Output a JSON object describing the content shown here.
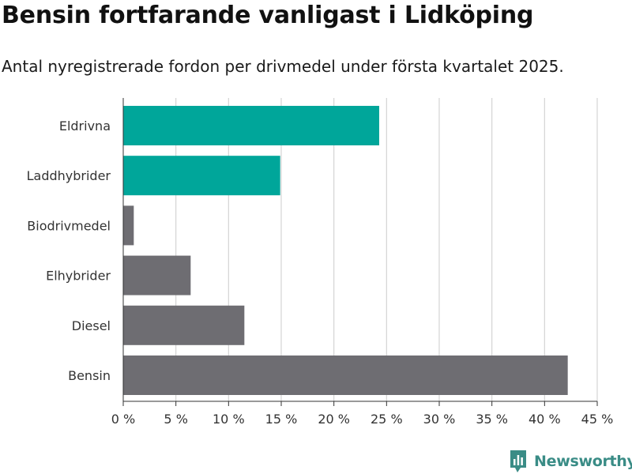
{
  "title": "Bensin fortfarande vanligast i Lidköping",
  "subtitle": "Antal nyregistrerade fordon per drivmedel under första kvartalet 2025.",
  "logo_text": "Newsworthy",
  "colors": {
    "highlight": "#00a69a",
    "base": "#6e6d72",
    "grid": "#d4d4d4",
    "axis": "#333333",
    "logo": "#3a8c86"
  },
  "chart_data": {
    "type": "bar",
    "orientation": "horizontal",
    "categories": [
      "Eldrivna",
      "Laddhybrider",
      "Biodrivmedel",
      "Elhybrider",
      "Diesel",
      "Bensin"
    ],
    "values": [
      24.3,
      14.9,
      1.0,
      6.4,
      11.5,
      42.2
    ],
    "highlighted": [
      true,
      true,
      false,
      false,
      false,
      false
    ],
    "xlim": [
      0,
      45
    ],
    "xticks": [
      0,
      5,
      10,
      15,
      20,
      25,
      30,
      35,
      40,
      45
    ],
    "tick_suffix": " %",
    "grid": true
  }
}
